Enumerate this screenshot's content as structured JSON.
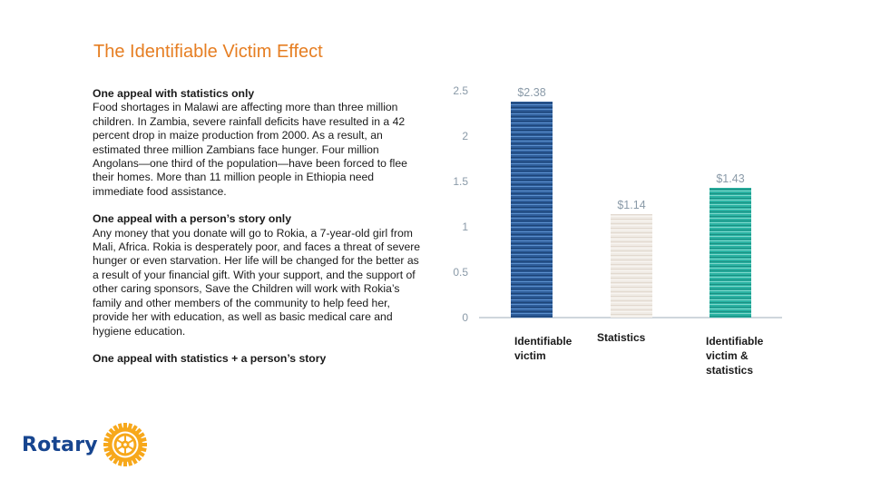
{
  "title": "The Identifiable Victim Effect",
  "sections": [
    {
      "heading": "One appeal with statistics only",
      "body": "Food shortages in Malawi are affecting more than three million children. In Zambia, severe rainfall deficits have resulted in a 42 percent drop in maize production from 2000. As a result, an estimated three million Zambians face hunger. Four million Angolans—one third of the population—have been forced to flee their homes. More than 11 million people in Ethiopia need immediate food assistance."
    },
    {
      "heading": "One appeal with a person’s story only",
      "body": "Any money that you donate will go to Rokia, a 7-year-old girl from Mali, Africa. Rokia is desperately poor, and faces a threat of severe hunger or even starvation. Her life will be changed for the better as a result of your financial gift. With your support, and the support of other caring sponsors, Save the Children will work with Rokia’s family and other members of the community to help feed her, provide her with education, as well as basic medical care and hygiene education."
    }
  ],
  "closing": "One appeal with statistics + a person’s story",
  "logo": {
    "text": "Rotary"
  },
  "colors": {
    "title": "#e67e22",
    "bar_victim": "#2e5d9a",
    "bar_statistics": "#ece6df",
    "bar_combined": "#2ab3a3",
    "axis_text": "#8a9aa8",
    "brand": "#17458f",
    "wheel": "#f7a81b"
  },
  "chart_data": {
    "type": "bar",
    "categories": [
      "Identifiable victim",
      "Statistics",
      "Identifiable victim & statistics"
    ],
    "values": [
      2.38,
      1.14,
      1.43
    ],
    "data_labels": [
      "$2.38",
      "$1.14",
      "$1.43"
    ],
    "yticks": [
      "0",
      "0.5",
      "1",
      "1.5",
      "2",
      "2.5"
    ],
    "ylim": [
      0,
      2.5
    ],
    "grid": false,
    "title": "",
    "xlabel": "",
    "ylabel": ""
  }
}
